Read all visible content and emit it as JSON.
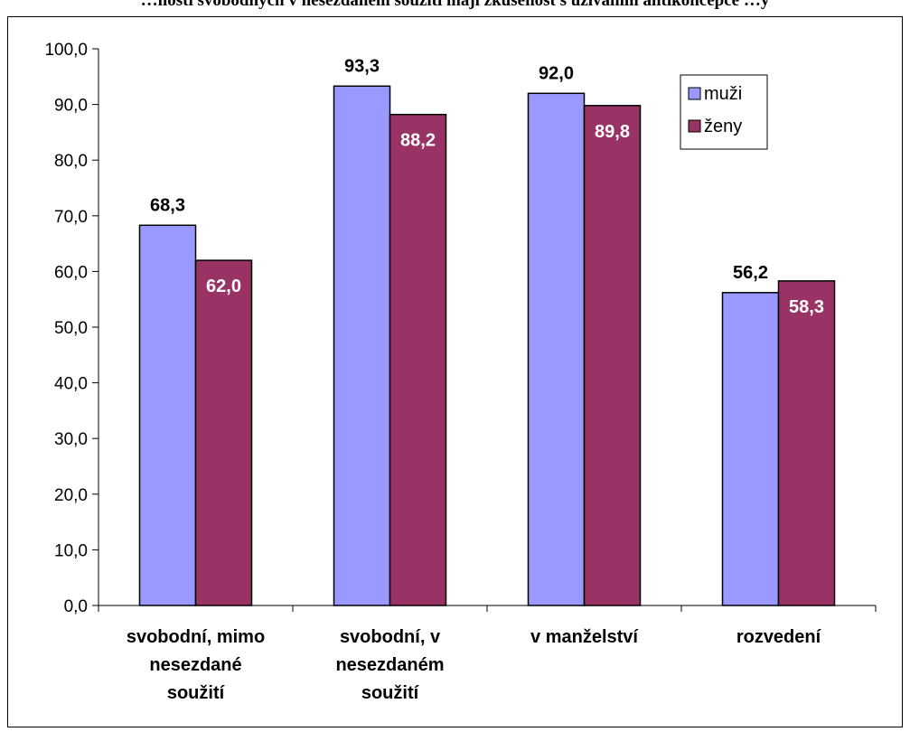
{
  "caption": "…nosti svobodných v nesezdaném soužití mají zkušenost s užíváním antikoncepce …y",
  "chart_data": {
    "type": "bar",
    "categories": [
      [
        "svobodní, mimo",
        "nesezdané",
        "soužití"
      ],
      [
        "svobodní, v",
        "nesezdaném",
        "soužití"
      ],
      [
        "v manželství"
      ],
      [
        "rozvedení"
      ]
    ],
    "series": [
      {
        "name": "muži",
        "values": [
          68.3,
          93.3,
          92.0,
          56.2
        ],
        "labels": [
          "68,3",
          "93,3",
          "92,0",
          "56,2"
        ]
      },
      {
        "name": "ženy",
        "values": [
          62.0,
          88.2,
          89.8,
          58.3
        ],
        "labels": [
          "62,0",
          "88,2",
          "89,8",
          "58,3"
        ]
      }
    ],
    "ylim": [
      0,
      100
    ],
    "yticks": [
      "0,0",
      "10,0",
      "20,0",
      "30,0",
      "40,0",
      "50,0",
      "60,0",
      "70,0",
      "80,0",
      "90,0",
      "100,0"
    ],
    "grid": false,
    "legend": "top-right",
    "colors": {
      "muzi": "#9999ff",
      "zeny": "#993366",
      "muzi_label": "#000000",
      "zeny_label": "#ffffff"
    }
  }
}
